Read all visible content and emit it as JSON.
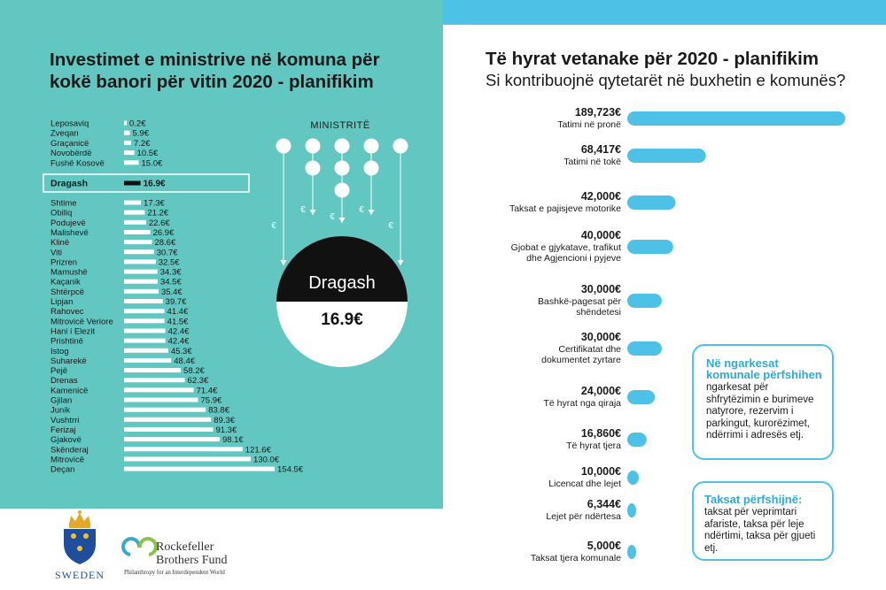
{
  "left": {
    "title": "Investimet e ministrive në komuna për kokë banori për vitin 2020 - planifikim",
    "ministries_label": "MINISTRITË",
    "euro_symbol": "€",
    "highlight": {
      "name": "Dragash",
      "value": "16.9€"
    }
  },
  "right": {
    "title": "Të hyrat vetanake për 2020 - planifikim",
    "subtitle": "Si kontribuojnë qytetarët në buxhetin e komunës?"
  },
  "info_boxes": [
    {
      "title": "Në ngarkesat komunale përfshihen",
      "body": "ngarkesat për shfrytëzimin e burimeve natyrore, rezervim i parkingut, kurorëzimet, ndërrimi i adresës etj."
    },
    {
      "title": "Taksat përfshijnë:",
      "body": "taksat për veprimtari afariste, taksa për leje ndërtimi, taksa për gjueti etj."
    }
  ],
  "logos": {
    "sweden": "SWEDEN",
    "rbf_line1": "Rockefeller",
    "rbf_line2": "Brothers Fund",
    "rbf_tagline": "Philanthropy for an Interdependent World"
  },
  "colors": {
    "teal": "#62c6c1",
    "blue": "#4ec1e6",
    "white": "#ffffff",
    "black": "#111111"
  },
  "chart_data": [
    {
      "type": "bar",
      "orientation": "horizontal",
      "title": "Investimet e ministrive në komuna për kokë banori për vitin 2020 - planifikim",
      "unit": "€",
      "highlight_category": "Dragash",
      "categories": [
        "Leposaviq",
        "Zveqan",
        "Graçanicë",
        "Novobërdë",
        "Fushë Kosovë",
        "Dragash",
        "Shtime",
        "Obiliq",
        "Podujevë",
        "Malishevë",
        "Klinë",
        "Viti",
        "Prizren",
        "Mamushë",
        "Kaçanik",
        "Shtërpcë",
        "Lipjan",
        "Rahovec",
        "Mitrovicë Veriore",
        "Hani i Elezit",
        "Prishtinë",
        "Istog",
        "Suharekë",
        "Pejë",
        "Drenas",
        "Kamenicë",
        "Gjilan",
        "Junik",
        "Vushtrri",
        "Ferizaj",
        "Gjakovë",
        "Skënderaj",
        "Mitrovicë",
        "Deçan"
      ],
      "values": [
        0.2,
        5.9,
        7.2,
        10.5,
        15.0,
        16.9,
        17.3,
        21.2,
        22.6,
        26.9,
        28.6,
        30.7,
        32.5,
        34.3,
        34.5,
        35.4,
        39.7,
        41.4,
        41.5,
        42.4,
        42.4,
        45.3,
        48.4,
        58.2,
        62.3,
        71.4,
        75.9,
        83.8,
        89.3,
        91.3,
        98.1,
        121.6,
        130.0,
        154.5
      ],
      "labels": [
        "0.2€",
        "5.9€",
        "7.2€",
        "10.5€",
        "15.0€",
        "16.9€",
        "17.3€",
        "21.2€",
        "22.6€",
        "26.9€",
        "28.6€",
        "30.7€",
        "32.5€",
        "34.3€",
        "34.5€",
        "35.4€",
        "39.7€",
        "41.4€",
        "41.5€",
        "42.4€",
        "42.4€",
        "45.3€",
        "48.4€",
        "58.2€",
        "62.3€",
        "71.4€",
        "75.9€",
        "83.8€",
        "89.3€",
        "91.3€",
        "98.1€",
        "121.6€",
        "130.0€",
        "154.5€"
      ]
    },
    {
      "type": "bar",
      "orientation": "horizontal",
      "title": "Të hyrat vetanake për 2020 - planifikim",
      "subtitle": "Si kontribuojnë qytetarët në buxhetin e komunës?",
      "unit": "€",
      "categories": [
        "Tatimi në pronë",
        "Tatimi në tokë",
        "Taksat e pajisjeve motorike",
        "Gjobat e gjykatave, trafikut dhe Agjencioni i pyjeve",
        "Bashkë-pagesat për shëndetesi",
        "Certifikatat dhe dokumentet zyrtare",
        "Të hyrat nga qiraja",
        "Të hyrat tjera",
        "Licencat dhe lejet",
        "Lejet për ndërtesa",
        "Taksat tjera komunale"
      ],
      "category_lines": [
        [
          "Tatimi në pronë"
        ],
        [
          "Tatimi në tokë"
        ],
        [
          "Taksat e pajisjeve motorike"
        ],
        [
          "Gjobat e gjykatave, trafikut",
          "dhe Agjencioni i pyjeve"
        ],
        [
          "Bashkë-pagesat për",
          "shëndetesi"
        ],
        [
          "Certifikatat dhe",
          "dokumentet zyrtare"
        ],
        [
          "Të hyrat nga qiraja"
        ],
        [
          "Të hyrat tjera"
        ],
        [
          "Licencat dhe lejet"
        ],
        [
          "Lejet për ndërtesa"
        ],
        [
          "Taksat tjera komunale"
        ]
      ],
      "values": [
        189723,
        68417,
        42000,
        40000,
        30000,
        30000,
        24000,
        16860,
        10000,
        6344,
        5000
      ],
      "labels": [
        "189,723€",
        "68,417€",
        "42,000€",
        "40,000€",
        "30,000€",
        "30,000€",
        "24,000€",
        "16,860€",
        "10,000€",
        "6,344€",
        "5,000€"
      ]
    }
  ]
}
